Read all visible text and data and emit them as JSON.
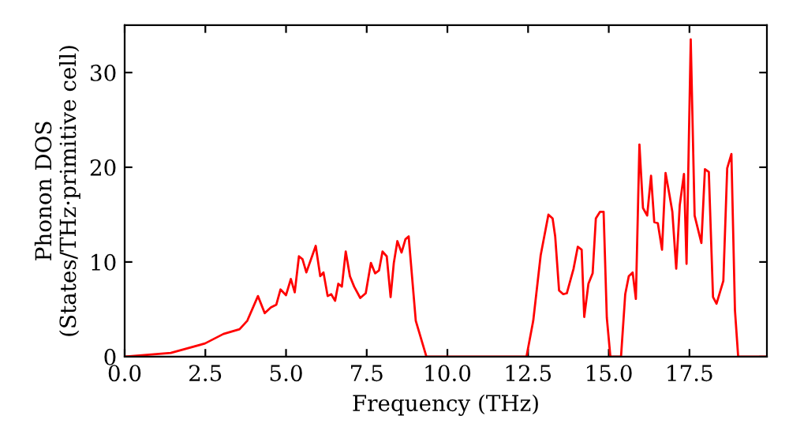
{
  "chart_data": {
    "type": "line",
    "xlabel": "Frequency (THz)",
    "ylabel": "Phonon DOS\n(States/THz·primitive cell)",
    "xlim": [
      0,
      19.9
    ],
    "ylim": [
      0,
      35
    ],
    "xticks": [
      {
        "value": 0,
        "label": "0.0"
      },
      {
        "value": 2.5,
        "label": "2.5"
      },
      {
        "value": 5,
        "label": "5.0"
      },
      {
        "value": 7.5,
        "label": "7.5"
      },
      {
        "value": 10,
        "label": "10.0"
      },
      {
        "value": 12.5,
        "label": "12.5"
      },
      {
        "value": 15,
        "label": "15.0"
      },
      {
        "value": 17.5,
        "label": "17.5"
      }
    ],
    "yticks": [
      0,
      10,
      20,
      30
    ],
    "grid": false,
    "series": [
      {
        "color": "#ff0000",
        "x": [
          0,
          1.43,
          2.49,
          3.06,
          3.56,
          3.8,
          4.13,
          4.34,
          4.53,
          4.7,
          4.83,
          5.0,
          5.15,
          5.27,
          5.4,
          5.51,
          5.63,
          5.92,
          6.06,
          6.16,
          6.29,
          6.4,
          6.52,
          6.62,
          6.73,
          6.85,
          6.98,
          7.11,
          7.3,
          7.47,
          7.63,
          7.76,
          7.88,
          7.99,
          8.12,
          8.24,
          8.34,
          8.45,
          8.58,
          8.7,
          8.8,
          9.02,
          9.35,
          12.45,
          12.66,
          12.89,
          13.13,
          13.26,
          13.34,
          13.46,
          13.59,
          13.7,
          13.91,
          14.04,
          14.16,
          14.24,
          14.37,
          14.5,
          14.6,
          14.73,
          14.84,
          14.94,
          15.05,
          15.38,
          15.51,
          15.62,
          15.74,
          15.84,
          15.95,
          16.06,
          16.19,
          16.31,
          16.41,
          16.52,
          16.65,
          16.76,
          16.88,
          16.97,
          17.09,
          17.2,
          17.33,
          17.41,
          17.54,
          17.66,
          17.87,
          17.98,
          18.1,
          18.23,
          18.34,
          18.55,
          18.67,
          18.8,
          18.91,
          19.01,
          19.9
        ],
        "values": [
          0,
          0.4,
          1.4,
          2.4,
          2.9,
          3.8,
          6.4,
          4.6,
          5.2,
          5.5,
          7.1,
          6.5,
          8.2,
          6.8,
          10.6,
          10.3,
          8.9,
          11.7,
          8.5,
          8.9,
          6.4,
          6.6,
          5.9,
          7.7,
          7.4,
          11.1,
          8.5,
          7.4,
          6.2,
          6.7,
          9.9,
          8.8,
          9.1,
          11.1,
          10.6,
          6.3,
          9.9,
          12.2,
          11.0,
          12.4,
          12.7,
          3.8,
          0,
          0,
          3.8,
          10.7,
          15.0,
          14.6,
          12.7,
          7.0,
          6.6,
          6.7,
          9.3,
          11.6,
          11.3,
          4.2,
          7.7,
          8.8,
          14.6,
          15.3,
          15.3,
          4.1,
          0,
          0,
          6.6,
          8.5,
          8.9,
          6.1,
          22.4,
          15.7,
          14.9,
          19.1,
          14.2,
          14.1,
          11.3,
          19.4,
          17.1,
          15.3,
          9.3,
          16.0,
          19.3,
          9.8,
          33.5,
          14.9,
          12.0,
          19.8,
          19.5,
          6.3,
          5.6,
          8.0,
          19.9,
          21.4,
          4.9,
          0,
          0
        ]
      }
    ]
  }
}
